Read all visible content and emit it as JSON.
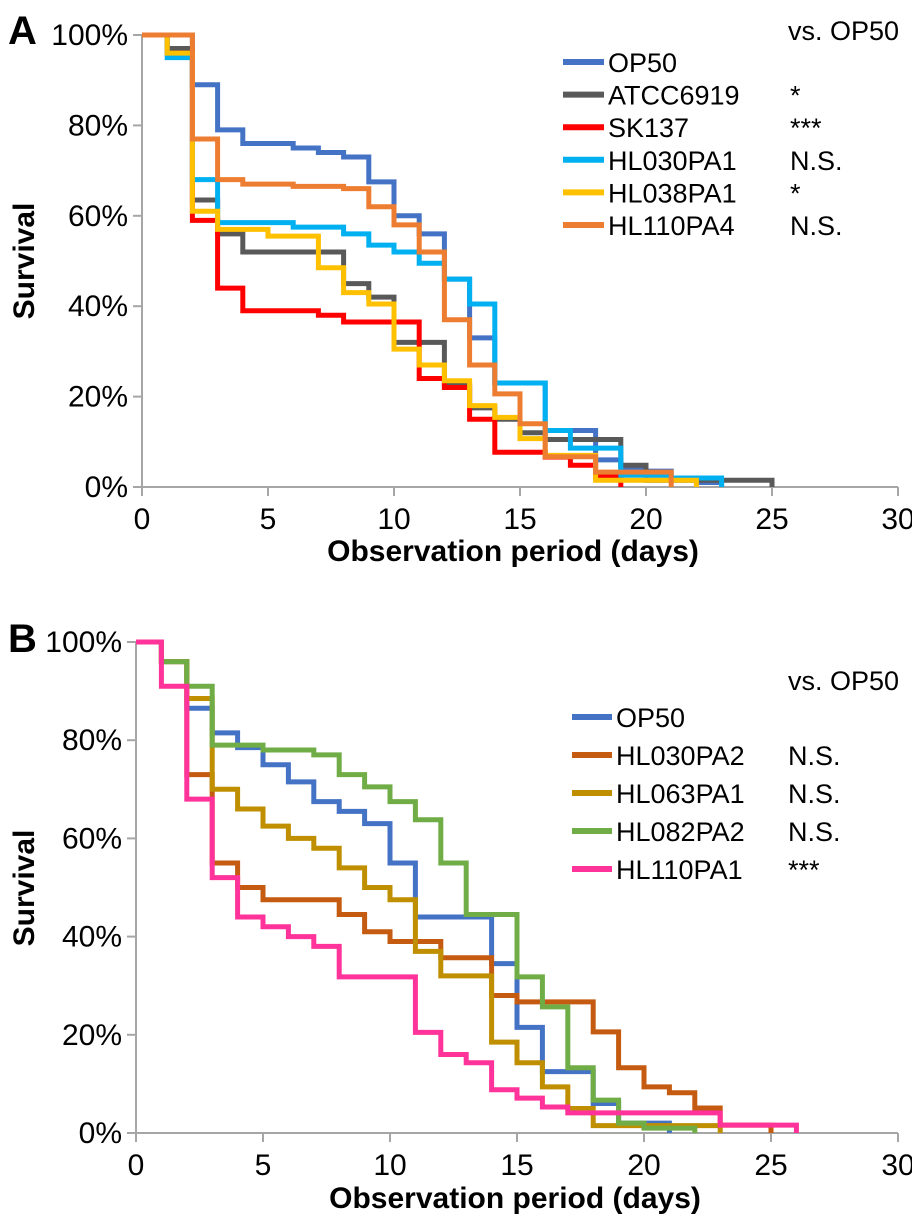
{
  "figure": {
    "background": "#ffffff",
    "axis_color": "#a6a6a6",
    "text_color": "#000000"
  },
  "chart_data": [
    {
      "type": "line",
      "panel_label": "A",
      "xlabel": "Observation period (days)",
      "ylabel": "Survival",
      "legend_header": "vs. OP50",
      "xlim": [
        0,
        30
      ],
      "ylim": [
        0,
        100
      ],
      "x_ticks": [
        0,
        5,
        10,
        15,
        20,
        25,
        30
      ],
      "y_ticks": [
        0,
        20,
        40,
        60,
        80,
        100
      ],
      "y_tick_suffix": "%",
      "grid": false,
      "legend_position": "upper-right",
      "series": [
        {
          "name": "OP50",
          "color": "#4472C4",
          "significance": "",
          "points": [
            [
              0,
              100
            ],
            [
              2,
              89
            ],
            [
              3,
              79
            ],
            [
              4,
              76
            ],
            [
              6,
              75
            ],
            [
              7,
              74
            ],
            [
              8,
              73
            ],
            [
              9,
              67.5
            ],
            [
              10,
              60
            ],
            [
              11,
              56
            ],
            [
              12,
              46
            ],
            [
              13,
              33
            ],
            [
              14,
              23
            ],
            [
              16,
              12.5
            ],
            [
              18,
              6
            ],
            [
              19,
              4
            ],
            [
              20,
              3.5
            ],
            [
              21,
              2
            ],
            [
              22,
              1
            ],
            [
              23,
              0
            ]
          ]
        },
        {
          "name": "ATCC6919",
          "color": "#595959",
          "significance": "*",
          "points": [
            [
              0,
              100
            ],
            [
              1,
              97
            ],
            [
              2,
              63.5
            ],
            [
              3,
              56
            ],
            [
              4,
              52
            ],
            [
              8,
              45
            ],
            [
              9,
              42
            ],
            [
              10,
              32
            ],
            [
              12,
              22.5
            ],
            [
              13,
              17.5
            ],
            [
              14,
              15
            ],
            [
              15,
              12
            ],
            [
              16,
              10.5
            ],
            [
              19,
              4.8
            ],
            [
              20,
              1.5
            ],
            [
              25,
              0
            ]
          ]
        },
        {
          "name": "SK137",
          "color": "#FF0000",
          "significance": "***",
          "points": [
            [
              0,
              100
            ],
            [
              1,
              96
            ],
            [
              2,
              59
            ],
            [
              3,
              44
            ],
            [
              4,
              39
            ],
            [
              7,
              38
            ],
            [
              8,
              36.5
            ],
            [
              11,
              24
            ],
            [
              12,
              22
            ],
            [
              13,
              15
            ],
            [
              14,
              7.7
            ],
            [
              16,
              6.6
            ],
            [
              17,
              4.8
            ],
            [
              18,
              2.2
            ],
            [
              19,
              0
            ]
          ]
        },
        {
          "name": "HL030PA1",
          "color": "#00B0F0",
          "significance": "N.S.",
          "points": [
            [
              0,
              100
            ],
            [
              1,
              95
            ],
            [
              2,
              68
            ],
            [
              3,
              58.5
            ],
            [
              6,
              57.5
            ],
            [
              8,
              56
            ],
            [
              9,
              53.5
            ],
            [
              10,
              52
            ],
            [
              11,
              49.5
            ],
            [
              12,
              46
            ],
            [
              13,
              40.5
            ],
            [
              14,
              23
            ],
            [
              16,
              12.5
            ],
            [
              17,
              8.6
            ],
            [
              19,
              2.6
            ],
            [
              21,
              2
            ],
            [
              23,
              0
            ]
          ]
        },
        {
          "name": "HL038PA1",
          "color": "#FFC000",
          "significance": "*",
          "points": [
            [
              0,
              100
            ],
            [
              1,
              96
            ],
            [
              2,
              61
            ],
            [
              3,
              57
            ],
            [
              5,
              55.5
            ],
            [
              7,
              48.5
            ],
            [
              8,
              43
            ],
            [
              9,
              40.5
            ],
            [
              10,
              30.5
            ],
            [
              11,
              27
            ],
            [
              12,
              23.5
            ],
            [
              13,
              18
            ],
            [
              14,
              15.4
            ],
            [
              15,
              10.7
            ],
            [
              16,
              7
            ],
            [
              18,
              1.5
            ],
            [
              22,
              0
            ]
          ]
        },
        {
          "name": "HL110PA4",
          "color": "#ED7D31",
          "significance": "N.S.",
          "points": [
            [
              0,
              100
            ],
            [
              2,
              77
            ],
            [
              3,
              68
            ],
            [
              4,
              67
            ],
            [
              6,
              66.5
            ],
            [
              8,
              66
            ],
            [
              9,
              62
            ],
            [
              10,
              58
            ],
            [
              11,
              52
            ],
            [
              12,
              37
            ],
            [
              13,
              27
            ],
            [
              14,
              20.6
            ],
            [
              15,
              14
            ],
            [
              16,
              6.7
            ],
            [
              18,
              3.3
            ],
            [
              21,
              0
            ]
          ]
        }
      ]
    },
    {
      "type": "line",
      "panel_label": "B",
      "xlabel": "Observation period (days)",
      "ylabel": "Survival",
      "legend_header": "vs. OP50",
      "xlim": [
        0,
        30
      ],
      "ylim": [
        0,
        100
      ],
      "x_ticks": [
        0,
        5,
        10,
        15,
        20,
        25,
        30
      ],
      "y_ticks": [
        0,
        20,
        40,
        60,
        80,
        100
      ],
      "y_tick_suffix": "%",
      "grid": false,
      "legend_position": "upper-right",
      "series": [
        {
          "name": "OP50",
          "color": "#4472C4",
          "significance": "",
          "points": [
            [
              0,
              100
            ],
            [
              1,
              96
            ],
            [
              2,
              86.5
            ],
            [
              3,
              81.5
            ],
            [
              4,
              78.5
            ],
            [
              5,
              75
            ],
            [
              6,
              71.5
            ],
            [
              7,
              67.5
            ],
            [
              8,
              65.5
            ],
            [
              9,
              63
            ],
            [
              10,
              55
            ],
            [
              11,
              44
            ],
            [
              14,
              34.5
            ],
            [
              15,
              21.5
            ],
            [
              16,
              12.5
            ],
            [
              18,
              6
            ],
            [
              19,
              2
            ],
            [
              21,
              0
            ]
          ]
        },
        {
          "name": "HL030PA2",
          "color": "#C55A11",
          "significance": "N.S.",
          "points": [
            [
              0,
              100
            ],
            [
              1,
              96
            ],
            [
              2,
              73
            ],
            [
              3,
              55
            ],
            [
              4,
              50
            ],
            [
              5,
              47.5
            ],
            [
              8,
              44.5
            ],
            [
              9,
              41
            ],
            [
              10,
              39
            ],
            [
              12,
              35.7
            ],
            [
              14,
              28
            ],
            [
              15,
              26.7
            ],
            [
              18,
              20.6
            ],
            [
              19,
              13.3
            ],
            [
              20,
              9.4
            ],
            [
              21,
              8.2
            ],
            [
              22,
              5.1
            ],
            [
              23,
              1.6
            ],
            [
              25,
              0
            ]
          ]
        },
        {
          "name": "HL063PA1",
          "color": "#BF8F00",
          "significance": "N.S.",
          "points": [
            [
              0,
              100
            ],
            [
              1,
              96
            ],
            [
              2,
              88.5
            ],
            [
              3,
              70
            ],
            [
              4,
              66
            ],
            [
              5,
              62.5
            ],
            [
              6,
              60
            ],
            [
              7,
              58
            ],
            [
              8,
              54
            ],
            [
              9,
              50
            ],
            [
              10,
              47.5
            ],
            [
              11,
              37
            ],
            [
              12,
              32
            ],
            [
              14,
              18.5
            ],
            [
              15,
              14.3
            ],
            [
              16,
              9.4
            ],
            [
              17,
              5
            ],
            [
              18,
              1.5
            ],
            [
              23,
              0
            ]
          ]
        },
        {
          "name": "HL082PA2",
          "color": "#70AD47",
          "significance": "N.S.",
          "points": [
            [
              0,
              100
            ],
            [
              1,
              96
            ],
            [
              2,
              91
            ],
            [
              3,
              79
            ],
            [
              5,
              78
            ],
            [
              7,
              77
            ],
            [
              8,
              73
            ],
            [
              9,
              70.5
            ],
            [
              10,
              67.5
            ],
            [
              11,
              63.8
            ],
            [
              12,
              55
            ],
            [
              13,
              44.5
            ],
            [
              15,
              31.8
            ],
            [
              16,
              25.7
            ],
            [
              17,
              13.3
            ],
            [
              18,
              6.7
            ],
            [
              19,
              2
            ],
            [
              20,
              1
            ],
            [
              22,
              0
            ]
          ]
        },
        {
          "name": "HL110PA1",
          "color": "#FF3399",
          "significance": "***",
          "points": [
            [
              0,
              100
            ],
            [
              1,
              91
            ],
            [
              2,
              68
            ],
            [
              3,
              52
            ],
            [
              4,
              44
            ],
            [
              5,
              42
            ],
            [
              6,
              40
            ],
            [
              7,
              38
            ],
            [
              8,
              31.8
            ],
            [
              11,
              20.5
            ],
            [
              12,
              16
            ],
            [
              13,
              14.3
            ],
            [
              14,
              8.8
            ],
            [
              15,
              7.1
            ],
            [
              16,
              5.3
            ],
            [
              17,
              4.1
            ],
            [
              23,
              1.6
            ],
            [
              26,
              0
            ]
          ]
        }
      ]
    }
  ]
}
